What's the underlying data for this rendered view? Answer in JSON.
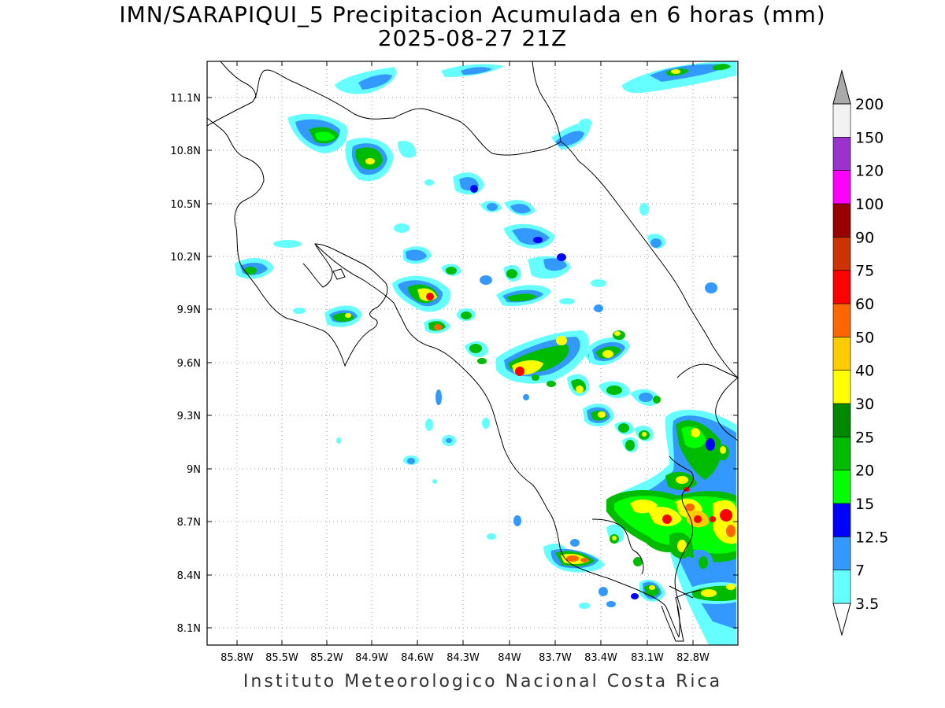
{
  "title": {
    "line1": "IMN/SARAPIQUI_5 Precipitacion Acumulada en 6 horas (mm)",
    "line2": "2025-08-27 21Z"
  },
  "footer": "Instituto Meteorologico Nacional Costa Rica",
  "map": {
    "lon_range": [
      -86.0,
      -83.0
    ],
    "lat_range": [
      8.0,
      11.3
    ],
    "x_ticks": [
      "85.8W",
      "85.5W",
      "85.2W",
      "84.9W",
      "84.6W",
      "84.3W",
      "84W",
      "83.7W",
      "83.4W",
      "83.1W",
      "82.8W"
    ],
    "y_ticks": [
      "11.1N",
      "10.8N",
      "10.5N",
      "10.2N",
      "9.9N",
      "9.6N",
      "9.3N",
      "9N",
      "8.7N",
      "8.4N",
      "8.1N"
    ],
    "grid": "dotted"
  },
  "colorbar": {
    "levels": [
      "3.5",
      "7",
      "12.5",
      "15",
      "20",
      "25",
      "30",
      "40",
      "50",
      "60",
      "75",
      "90",
      "100",
      "120",
      "150",
      "200"
    ],
    "colors": [
      "#ffffff",
      "#66ffff",
      "#3399ff",
      "#0000ff",
      "#00ff00",
      "#00bb00",
      "#008800",
      "#ffff00",
      "#ffcc00",
      "#ff6600",
      "#ff0000",
      "#cc3300",
      "#990000",
      "#ff00ff",
      "#9933cc",
      "#f2f2f2",
      "#aaaaaa"
    ]
  },
  "chart_data": {
    "type": "heatmap",
    "variable": "Precipitacion Acumulada en 6 horas (mm)",
    "valid_time": "2025-08-27 21Z",
    "cells": [
      {
        "lon": -84.87,
        "lat": 10.77,
        "mm": 25
      },
      {
        "lon": -85.09,
        "lat": 10.9,
        "mm": 20
      },
      {
        "lon": -84.56,
        "lat": 9.97,
        "mm": 40
      },
      {
        "lon": -84.48,
        "lat": 9.78,
        "mm": 40
      },
      {
        "lon": -84.05,
        "lat": 9.53,
        "mm": 60
      },
      {
        "lon": -83.53,
        "lat": 8.46,
        "mm": 40
      },
      {
        "lon": -82.75,
        "lat": 8.72,
        "mm": 50
      },
      {
        "lon": -82.7,
        "lat": 8.78,
        "mm": 60
      },
      {
        "lon": -82.9,
        "lat": 8.75,
        "mm": 50
      },
      {
        "lon": -82.9,
        "lat": 9.18,
        "mm": 30
      },
      {
        "lon": -83.38,
        "lat": 9.63,
        "mm": 30
      },
      {
        "lon": -83.55,
        "lat": 9.42,
        "mm": 30
      },
      {
        "lon": -85.12,
        "lat": 9.85,
        "mm": 20
      },
      {
        "lon": -85.55,
        "lat": 10.12,
        "mm": 20
      },
      {
        "lon": -82.98,
        "lat": 11.23,
        "mm": 15
      }
    ]
  }
}
